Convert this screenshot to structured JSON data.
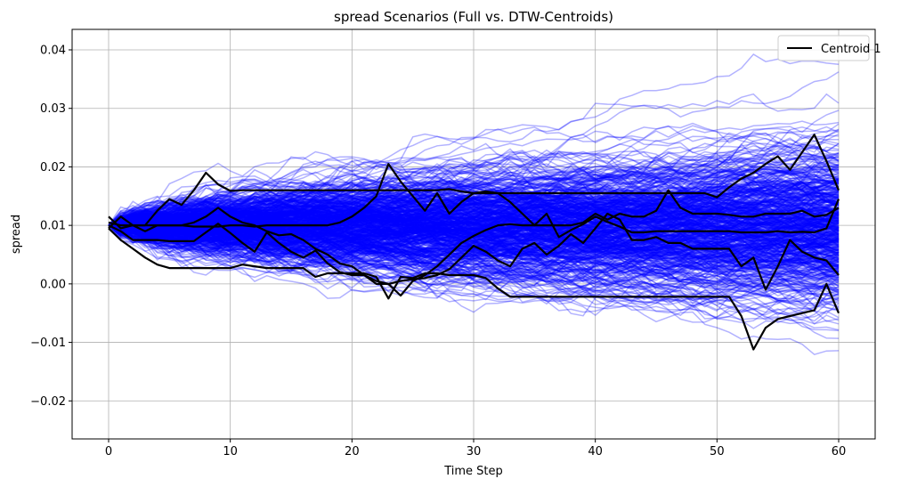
{
  "chart_data": {
    "type": "line",
    "title": "spread Scenarios (Full vs. DTW-Centroids)",
    "xlabel": "Time Step",
    "ylabel": "spread",
    "xlim": [
      -3,
      63
    ],
    "ylim": [
      -0.0265,
      0.0435
    ],
    "xticks": [
      0,
      10,
      20,
      30,
      40,
      50,
      60
    ],
    "xtick_labels": [
      "0",
      "10",
      "20",
      "30",
      "40",
      "50",
      "60"
    ],
    "yticks": [
      -0.02,
      -0.01,
      0.0,
      0.01,
      0.02,
      0.03,
      0.04
    ],
    "ytick_labels": [
      "−0.02",
      "−0.01",
      "0.00",
      "0.01",
      "0.02",
      "0.03",
      "0.04"
    ],
    "grid": true,
    "legend": {
      "placement": "top-right",
      "entries": [
        "Centroid 1"
      ]
    },
    "colors": {
      "scenario": "#0000ff",
      "centroid": "#000000"
    },
    "scenarios": {
      "count": 600,
      "start_value": 0.01,
      "color": "#0000ff",
      "alpha": 0.3,
      "approx_envelope_t60": [
        -0.016,
        0.039
      ]
    },
    "series": [
      {
        "values": [
          0.0115,
          0.0095,
          0.01,
          0.01,
          0.0125,
          0.0145,
          0.0135,
          0.016,
          0.019,
          0.017,
          0.0159,
          0.016,
          0.016,
          0.016,
          0.016,
          0.016,
          0.016,
          0.016,
          0.016,
          0.016,
          0.016,
          0.016,
          0.016,
          0.016,
          0.016,
          0.016,
          0.016,
          0.016,
          0.0162,
          0.0158,
          0.0155,
          0.0155,
          0.0155,
          0.0155,
          0.0155,
          0.0155,
          0.0155,
          0.0155,
          0.0155,
          0.0155,
          0.0155,
          0.0155,
          0.0155,
          0.0155,
          0.0155,
          0.0155,
          0.0155,
          0.0155,
          0.0155,
          0.0155,
          0.0148,
          0.0165,
          0.018,
          0.019,
          0.0205,
          0.0218,
          0.0195,
          0.0225,
          0.0255,
          0.021,
          0.016
        ]
      },
      {
        "values": [
          0.0095,
          0.0115,
          0.01,
          0.009,
          0.01,
          0.01,
          0.01,
          0.0105,
          0.0115,
          0.013,
          0.0115,
          0.0105,
          0.01,
          0.009,
          0.0083,
          0.0085,
          0.0075,
          0.006,
          0.005,
          0.0035,
          0.003,
          0.0015,
          0.0005,
          0.0,
          -0.002,
          0.0005,
          0.0015,
          0.003,
          0.005,
          0.007,
          0.0082,
          0.0092,
          0.01,
          0.0102,
          0.01,
          0.01,
          0.01,
          0.01,
          0.01,
          0.0105,
          0.012,
          0.011,
          0.012,
          0.0115,
          0.0115,
          0.0125,
          0.016,
          0.013,
          0.012,
          0.012,
          0.012,
          0.0118,
          0.0115,
          0.0115,
          0.012,
          0.012,
          0.012,
          0.0125,
          0.0115,
          0.0118,
          0.013
        ]
      },
      {
        "values": [
          0.0105,
          0.01,
          0.01,
          0.01,
          0.01,
          0.01,
          0.01,
          0.0098,
          0.0098,
          0.0098,
          0.01,
          0.01,
          0.0098,
          0.01,
          0.01,
          0.01,
          0.01,
          0.01,
          0.01,
          0.0105,
          0.0115,
          0.013,
          0.015,
          0.0205,
          0.0175,
          0.015,
          0.0125,
          0.0155,
          0.012,
          0.014,
          0.0155,
          0.0158,
          0.0155,
          0.014,
          0.012,
          0.01,
          0.012,
          0.008,
          0.0092,
          0.0102,
          0.0115,
          0.0106,
          0.0098,
          0.0088,
          0.0088,
          0.009,
          0.009,
          0.009,
          0.009,
          0.009,
          0.009,
          0.009,
          0.0088,
          0.0088,
          0.0088,
          0.009,
          0.0088,
          0.0089,
          0.0088,
          0.0095,
          0.0145
        ]
      },
      {
        "values": [
          0.01,
          0.009,
          0.0075,
          0.0075,
          0.0075,
          0.0073,
          0.0073,
          0.0073,
          0.0088,
          0.0103,
          0.0087,
          0.007,
          0.0055,
          0.0088,
          0.007,
          0.0055,
          0.0045,
          0.0057,
          0.0035,
          0.002,
          0.0015,
          0.0015,
          0.0,
          0.0,
          0.0005,
          0.0008,
          0.001,
          0.0015,
          0.0025,
          0.0045,
          0.0065,
          0.0055,
          0.004,
          0.003,
          0.006,
          0.007,
          0.005,
          0.0065,
          0.0085,
          0.007,
          0.0095,
          0.012,
          0.011,
          0.0075,
          0.0075,
          0.008,
          0.007,
          0.007,
          0.006,
          0.006,
          0.006,
          0.006,
          0.003,
          0.0045,
          -0.001,
          0.003,
          0.0075,
          0.0055,
          0.0045,
          0.004,
          0.0015
        ]
      },
      {
        "values": [
          0.0095,
          0.0075,
          0.006,
          0.0045,
          0.0033,
          0.0027,
          0.0027,
          0.0027,
          0.0027,
          0.0027,
          0.0027,
          0.0033,
          0.003,
          0.0027,
          0.0027,
          0.0027,
          0.0027,
          0.0012,
          0.0018,
          0.0018,
          0.0018,
          0.0018,
          0.0012,
          -0.0025,
          0.0012,
          0.001,
          0.0018,
          0.0018,
          0.0015,
          0.0015,
          0.0015,
          0.001,
          -0.0008,
          -0.0022,
          -0.0022,
          -0.0022,
          -0.0022,
          -0.0022,
          -0.0022,
          -0.0022,
          -0.0022,
          -0.0022,
          -0.0022,
          -0.0022,
          -0.0022,
          -0.0022,
          -0.0022,
          -0.0022,
          -0.0022,
          -0.0022,
          -0.0022,
          -0.0022,
          -0.0055,
          -0.0112,
          -0.0075,
          -0.006,
          -0.0055,
          -0.005,
          -0.0045,
          0.0,
          -0.005
        ]
      }
    ]
  }
}
